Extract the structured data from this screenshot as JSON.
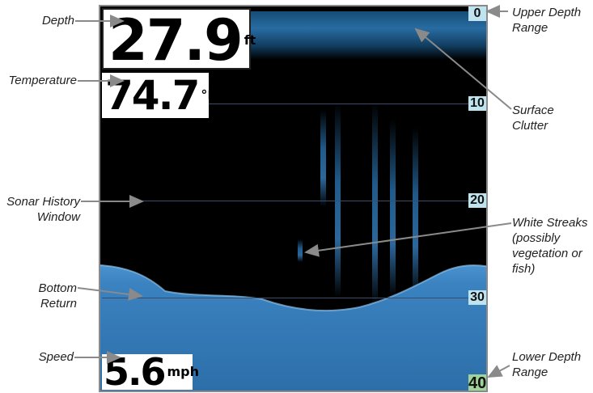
{
  "readouts": {
    "depth_value": "27.9",
    "depth_unit": "ft",
    "temperature_value": "74.7",
    "temperature_unit": "°F",
    "speed_value": "5.6",
    "speed_unit": "mph"
  },
  "depth_scale": {
    "ticks": [
      "0",
      "10",
      "20",
      "30",
      "40"
    ]
  },
  "callouts": {
    "depth": "Depth",
    "temperature": "Temperature",
    "sonar_history_window": [
      "Sonar History",
      "Window"
    ],
    "bottom_return": [
      "Bottom",
      "Return"
    ],
    "speed": "Speed",
    "upper_depth_range": [
      "Upper Depth",
      "Range"
    ],
    "surface_clutter": [
      "Surface",
      "Clutter"
    ],
    "white_streaks": [
      "White Streaks",
      "(possibly",
      "vegetation or",
      "fish)"
    ],
    "lower_depth_range": [
      "Lower Depth",
      "Range"
    ]
  },
  "colors": {
    "sonar_background": "#000000",
    "sonar_return": "#2f7fbf",
    "bottom_return": "#3b84c2",
    "upper_tick_bg": "#bfe3ef",
    "lower_tick_bg": "#9fd39a",
    "callout_line": "#8a8a8a"
  }
}
